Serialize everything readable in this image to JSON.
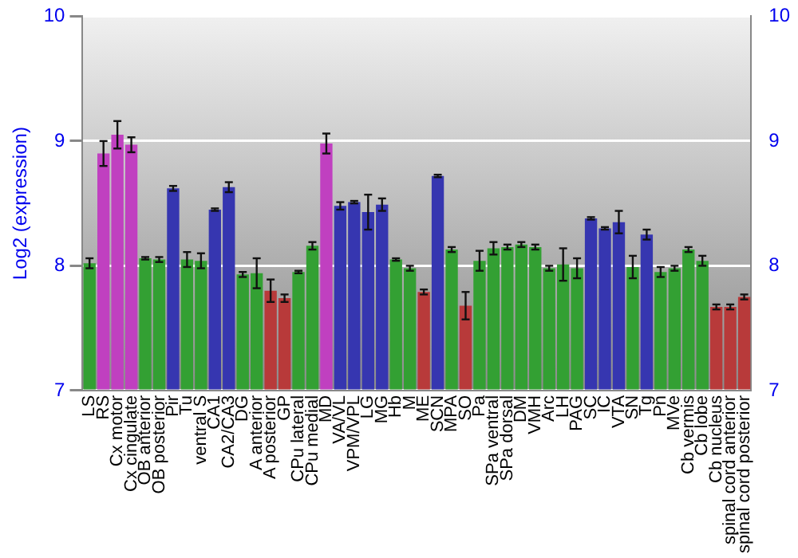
{
  "chart_data": {
    "type": "bar",
    "ylabel": "Log2 (expression)",
    "categories": [
      "LS",
      "RS",
      "Cx motor",
      "Cx cingulate",
      "OB anterior",
      "OB posterior",
      "Pir",
      "Tu",
      "ventral S",
      "CA1",
      "CA2/CA3",
      "DG",
      "A anterior",
      "A posterior",
      "GP",
      "CPu lateral",
      "CPu medial",
      "MD",
      "VA/VL",
      "VPM/VPL",
      "LG",
      "MG",
      "Hb",
      "M",
      "ME",
      "SCN",
      "MPA",
      "SO",
      "Pa",
      "SPa ventral",
      "SPa dorsal",
      "DM",
      "VMH",
      "Arc",
      "LH",
      "PAG",
      "SC",
      "IC",
      "VTA",
      "SN",
      "Tg",
      "Pn",
      "MVe",
      "Cb vermis",
      "Cb lobe",
      "Cb nucleus",
      "spinal cord anterior",
      "spinal cord posterior"
    ],
    "values": [
      8.02,
      8.9,
      9.05,
      8.97,
      8.06,
      8.05,
      8.62,
      8.05,
      8.04,
      8.45,
      8.63,
      7.93,
      7.94,
      7.8,
      7.74,
      7.95,
      8.16,
      8.98,
      8.48,
      8.51,
      8.43,
      8.49,
      8.05,
      7.98,
      7.79,
      8.72,
      8.13,
      7.68,
      8.04,
      8.14,
      8.15,
      8.17,
      8.15,
      7.98,
      8.01,
      7.98,
      8.38,
      8.3,
      8.35,
      7.99,
      8.25,
      7.95,
      7.98,
      8.13,
      8.04,
      7.67,
      7.67,
      7.75
    ],
    "errors": [
      0.04,
      0.1,
      0.11,
      0.06,
      0.01,
      0.02,
      0.02,
      0.06,
      0.06,
      0.01,
      0.04,
      0.02,
      0.12,
      0.09,
      0.03,
      0.01,
      0.03,
      0.08,
      0.03,
      0.01,
      0.14,
      0.05,
      0.01,
      0.02,
      0.02,
      0.01,
      0.02,
      0.11,
      0.08,
      0.05,
      0.02,
      0.02,
      0.02,
      0.02,
      0.13,
      0.08,
      0.01,
      0.01,
      0.09,
      0.09,
      0.04,
      0.04,
      0.02,
      0.02,
      0.04,
      0.02,
      0.02,
      0.02
    ],
    "colors": [
      "#33a033",
      "#c040c0",
      "#c040c0",
      "#c040c0",
      "#33a033",
      "#33a033",
      "#3636b0",
      "#33a033",
      "#33a033",
      "#3636b0",
      "#3636b0",
      "#33a033",
      "#33a033",
      "#b83a3a",
      "#b83a3a",
      "#33a033",
      "#33a033",
      "#c040c0",
      "#3636b0",
      "#3636b0",
      "#3636b0",
      "#3636b0",
      "#33a033",
      "#33a033",
      "#b83a3a",
      "#3636b0",
      "#33a033",
      "#b83a3a",
      "#33a033",
      "#33a033",
      "#33a033",
      "#33a033",
      "#33a033",
      "#33a033",
      "#33a033",
      "#33a033",
      "#3636b0",
      "#3636b0",
      "#3636b0",
      "#33a033",
      "#3636b0",
      "#33a033",
      "#33a033",
      "#33a033",
      "#33a033",
      "#b83a3a",
      "#b83a3a",
      "#b83a3a"
    ],
    "ylim": [
      7,
      10
    ],
    "yticks": [
      7,
      8,
      9,
      10
    ],
    "y2lim": [
      7,
      10
    ],
    "y2ticks": [
      7,
      8,
      9,
      10
    ],
    "grid": "y",
    "legend": false
  }
}
